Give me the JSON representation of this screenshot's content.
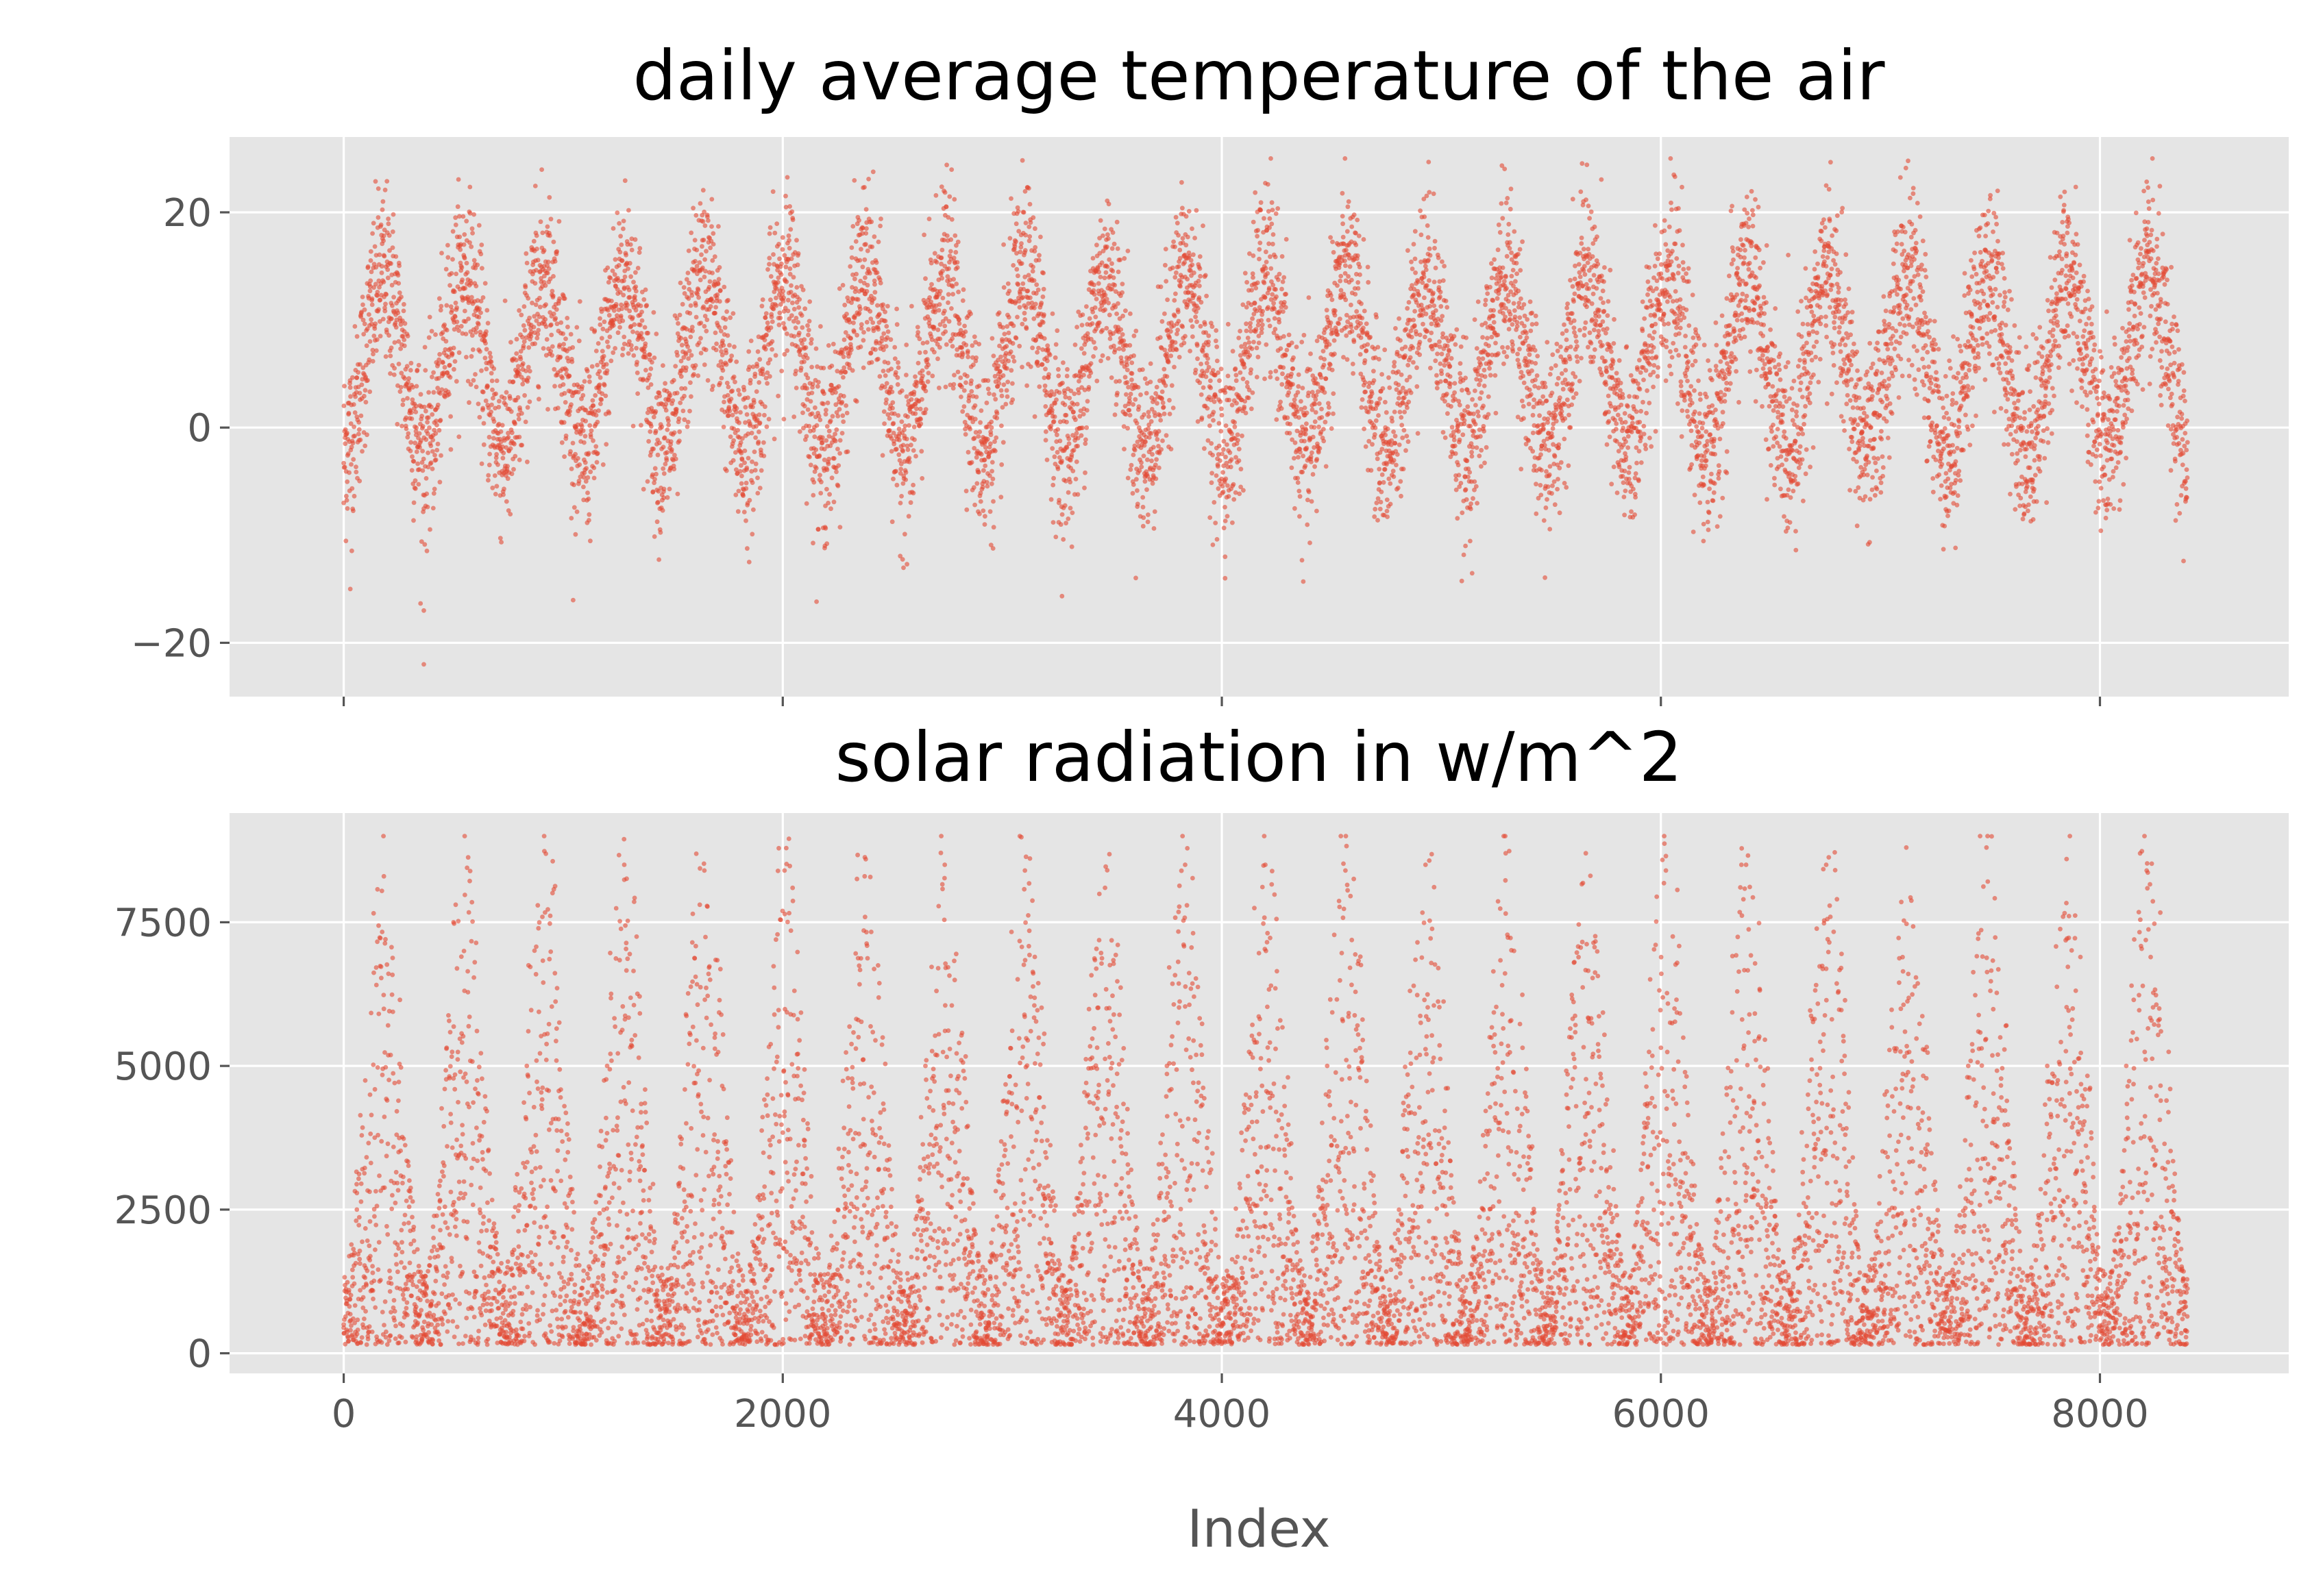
{
  "figure": {
    "xlabel": "Index"
  },
  "chart_data": [
    {
      "type": "scatter",
      "title": "daily average temperature of the air",
      "xlabel": "",
      "ylabel": "",
      "xlim": [
        -520,
        8860
      ],
      "ylim": [
        -25,
        27
      ],
      "xticks": [
        0,
        2000,
        4000,
        6000,
        8000
      ],
      "xtick_labels_shown": false,
      "yticks": [
        -20,
        0,
        20
      ],
      "ytick_labels": [
        "−20",
        "0",
        "20"
      ],
      "grid": true,
      "point_color": "#e24a33",
      "background_color": "#e5e5e5",
      "n_points": 8400,
      "pattern": "annual cycle, period ~365 index steps, troughs near index 365*k (~-5 to 0), peaks near 183+365*k (~12 to 20), noise spread ~6",
      "series": [
        {
          "x": [
            0,
            30,
            60,
            120,
            183,
            250,
            330,
            365,
            420,
            500,
            548,
            650,
            730,
            800,
            913,
            1000,
            1095,
            1200,
            1278,
            1400,
            1460,
            1560,
            1643,
            1750,
            1825,
            1900,
            2008,
            2100,
            2190,
            2300,
            2373,
            2480,
            2555,
            2650,
            2738,
            2850,
            2920,
            3000,
            3103,
            3200,
            3285,
            3380,
            3468,
            3560,
            3650,
            3750,
            3833,
            3920,
            4015,
            4100,
            4198,
            4300,
            4380,
            4480,
            4563,
            4650,
            4745,
            4850,
            4928,
            5020,
            5110,
            5200,
            5293,
            5400,
            5475,
            5570,
            5658,
            5750,
            5840,
            5940,
            6023,
            6120,
            6205,
            6300,
            6388,
            6480,
            6570,
            6670,
            6753,
            6850,
            6935,
            7020,
            7118,
            7210,
            7300,
            7400,
            7483,
            7570,
            7665,
            7760,
            7848,
            7940,
            8030,
            8120,
            8213,
            8300,
            8390,
            365,
            2920,
            4015,
            5110
          ],
          "y": [
            -7,
            -15,
            1,
            8,
            16,
            8,
            2,
            -22,
            -3,
            10,
            17,
            6,
            -1,
            5,
            15,
            4,
            -3,
            9,
            13,
            4,
            -1,
            8,
            14,
            3,
            -4,
            5,
            16,
            2,
            -2,
            10,
            17,
            6,
            -1,
            7,
            15,
            3,
            -3,
            8,
            14,
            3,
            -2,
            8,
            15,
            2,
            -5,
            9,
            14,
            2,
            -12,
            7,
            14,
            3,
            -2,
            8,
            16,
            6,
            0,
            10,
            15,
            3,
            -3,
            7,
            14,
            5,
            -2,
            9,
            16,
            4,
            -3,
            7,
            15,
            6,
            1,
            12,
            19,
            5,
            -1,
            7,
            15,
            3,
            -3,
            6,
            14,
            5,
            -1,
            8,
            14,
            3,
            -2,
            8,
            15,
            3,
            -2,
            8,
            14,
            4,
            -5,
            -17,
            -9,
            -14,
            -11
          ]
        }
      ]
    },
    {
      "type": "scatter",
      "title": "solar radiation in w/m^2",
      "xlabel": "Index",
      "ylabel": "",
      "xlim": [
        -520,
        8860
      ],
      "ylim": [
        -350,
        9400
      ],
      "xticks": [
        0,
        2000,
        4000,
        6000,
        8000
      ],
      "xtick_labels": [
        "0",
        "2000",
        "4000",
        "6000",
        "8000"
      ],
      "yticks": [
        0,
        2500,
        5000,
        7500
      ],
      "ytick_labels": [
        "0",
        "2500",
        "5000",
        "7500"
      ],
      "grid": true,
      "point_color": "#e24a33",
      "background_color": "#e5e5e5",
      "n_points": 8400,
      "pattern": "annual cycle, period ~365 index steps, near 100-1500 in winter, upper envelope ~7500-9000 near peaks at 183+365*k",
      "series": [
        {
          "x": [
            0,
            60,
            120,
            183,
            250,
            330,
            365,
            440,
            500,
            548,
            620,
            730,
            800,
            913,
            990,
            1095,
            1200,
            1278,
            1350,
            1460,
            1560,
            1643,
            1720,
            1825,
            1930,
            2008,
            2100,
            2190,
            2300,
            2373,
            2460,
            2555,
            2650,
            2738,
            2830,
            2920,
            3020,
            3103,
            3190,
            3285,
            3390,
            3468,
            3560,
            3650,
            3750,
            3833,
            3920,
            4015,
            4110,
            4198,
            4300,
            4380,
            4480,
            4563,
            4660,
            4745,
            4850,
            4928,
            5020,
            5110,
            5220,
            5293,
            5390,
            5475,
            5570,
            5658,
            5760,
            5840,
            5940,
            6023,
            6120,
            6205,
            6300,
            6388,
            6480,
            6570,
            6670,
            6753,
            6850,
            6935,
            7020,
            7118,
            7210,
            7300,
            7400,
            7483,
            7570,
            7665,
            7760,
            7848,
            7940,
            8030,
            8120,
            8213,
            8300,
            8390
          ],
          "y": [
            500,
            2500,
            4500,
            8300,
            3500,
            700,
            300,
            3000,
            7500,
            7000,
            2500,
            300,
            2800,
            9000,
            3000,
            300,
            5000,
            8500,
            3000,
            200,
            4000,
            8400,
            2000,
            300,
            4500,
            8400,
            2200,
            300,
            3500,
            8300,
            1500,
            200,
            5000,
            8500,
            1800,
            300,
            4200,
            8400,
            2000,
            400,
            4500,
            8100,
            1800,
            200,
            5000,
            8500,
            1500,
            300,
            4500,
            8500,
            2000,
            300,
            5000,
            8400,
            2000,
            300,
            4500,
            8500,
            2000,
            400,
            5500,
            8700,
            1500,
            300,
            4500,
            8700,
            1500,
            300,
            4000,
            8400,
            2000,
            400,
            4500,
            8500,
            1800,
            300,
            4500,
            8500,
            1500,
            300,
            4500,
            8800,
            1800,
            400,
            5000,
            8800,
            1800,
            300,
            5000,
            8600,
            1800,
            400,
            5000,
            8400,
            1500,
            400
          ]
        }
      ]
    }
  ]
}
